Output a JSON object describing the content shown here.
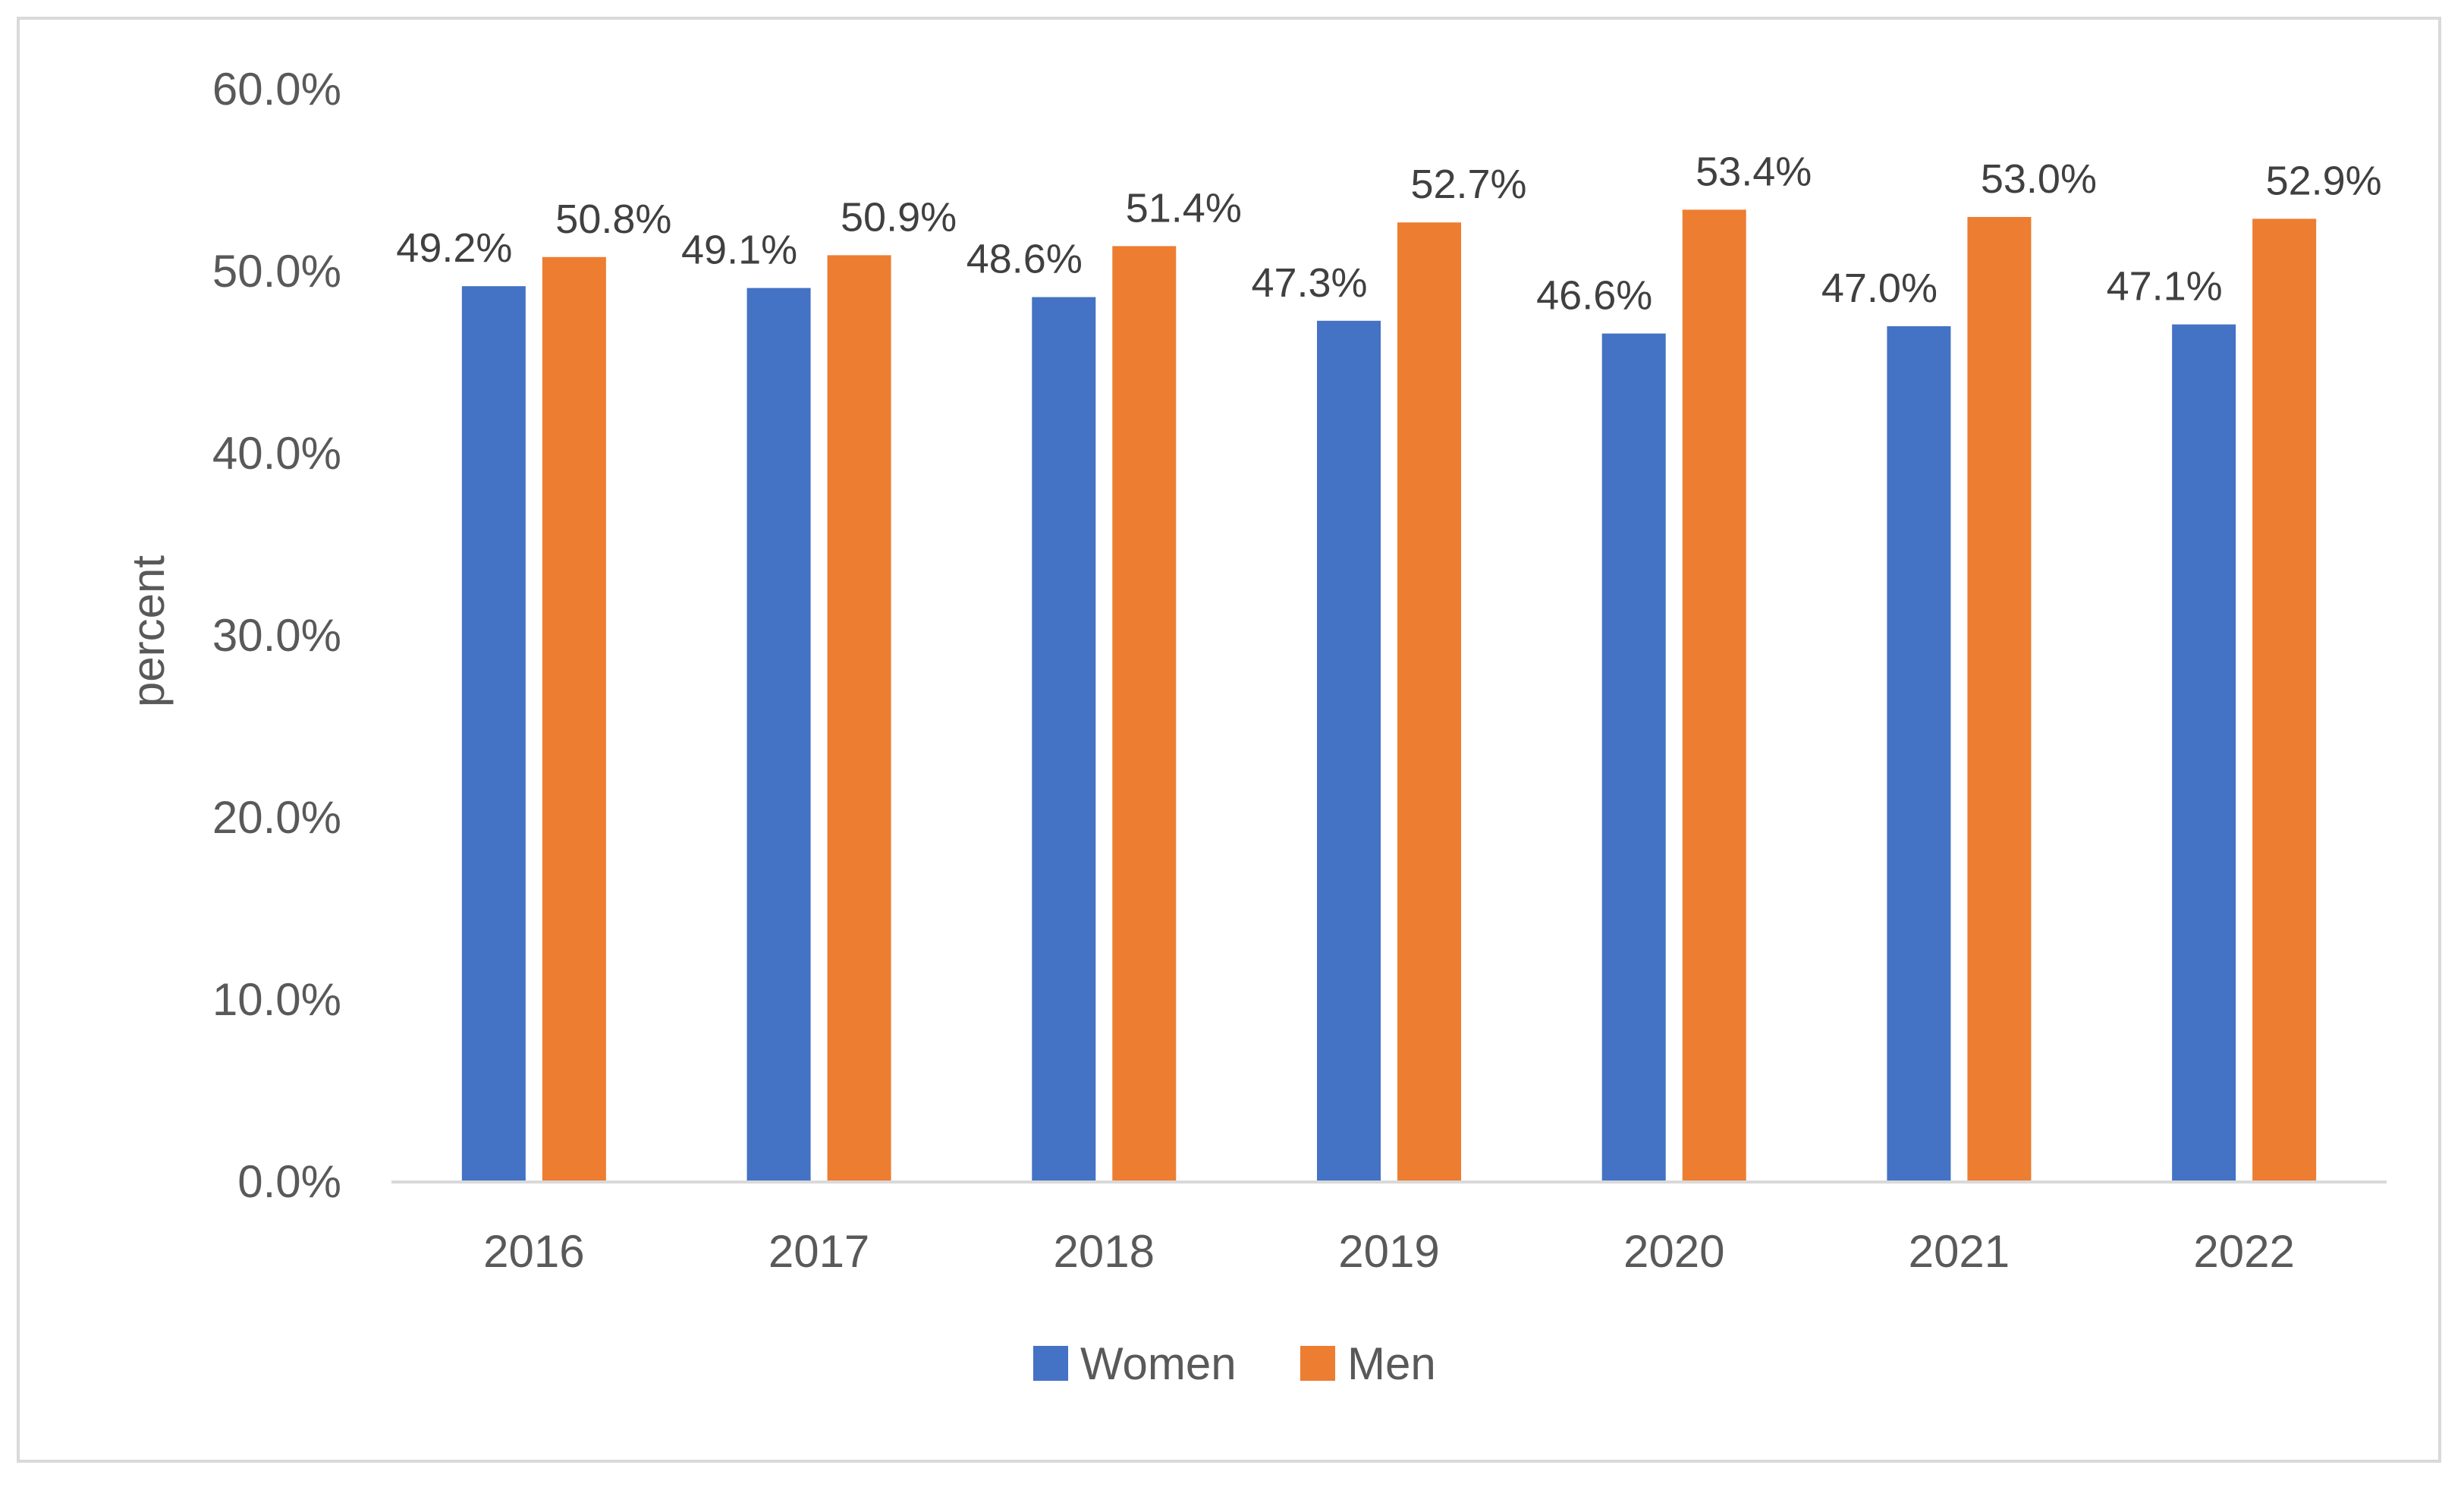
{
  "chart_data": {
    "type": "bar",
    "title": "",
    "xlabel": "",
    "ylabel": "percent",
    "ylim": [
      0,
      60
    ],
    "y_ticks": [
      "0.0%",
      "10.0%",
      "20.0%",
      "30.0%",
      "40.0%",
      "50.0%",
      "60.0%"
    ],
    "grid": false,
    "legend_position": "bottom",
    "categories": [
      "2016",
      "2017",
      "2018",
      "2019",
      "2020",
      "2021",
      "2022"
    ],
    "series": [
      {
        "name": "Women",
        "color": "#4472c4",
        "values": [
          49.2,
          49.1,
          48.6,
          47.3,
          46.6,
          47.0,
          47.1
        ],
        "labels": [
          "49.2%",
          "49.1%",
          "48.6%",
          "47.3%",
          "46.6%",
          "47.0%",
          "47.1%"
        ]
      },
      {
        "name": "Men",
        "color": "#ed7d31",
        "values": [
          50.8,
          50.9,
          51.4,
          52.7,
          53.4,
          53.0,
          52.9
        ],
        "labels": [
          "50.8%",
          "50.9%",
          "51.4%",
          "52.7%",
          "53.4%",
          "53.0%",
          "52.9%"
        ]
      }
    ]
  }
}
